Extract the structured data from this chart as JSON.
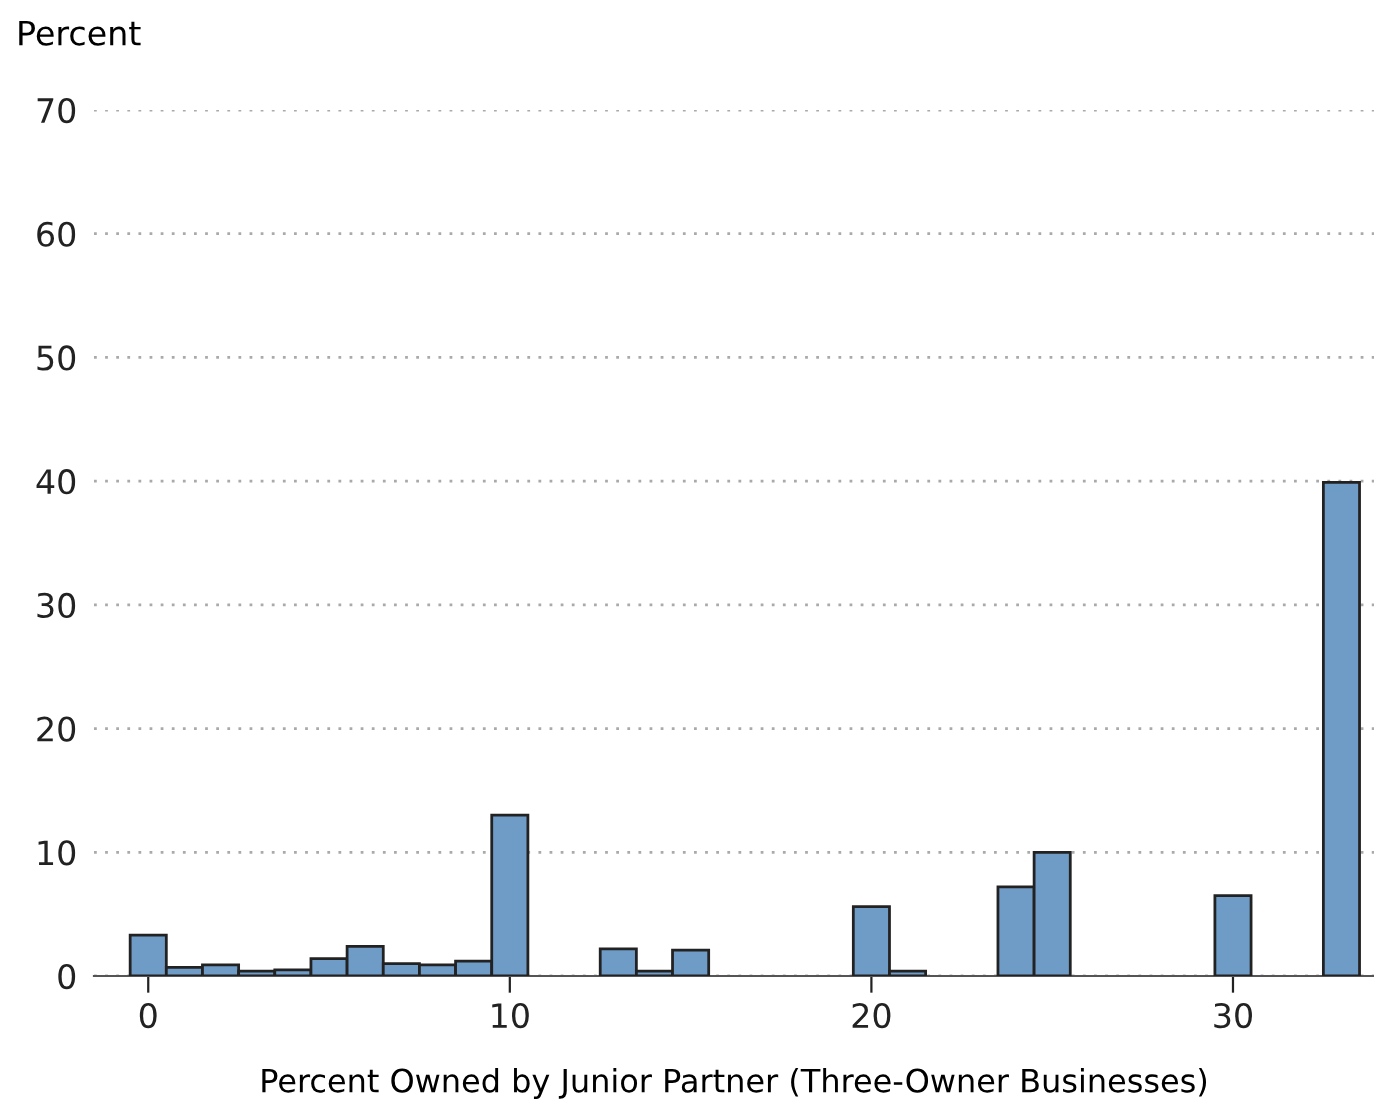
{
  "chart_data": {
    "type": "histogram",
    "ylabel": "Percent",
    "xlabel": "Percent Owned by Junior Partner (Three-Owner Businesses)",
    "bins": [
      -0.5,
      0.5,
      1.5,
      2.5,
      3.5,
      4.5,
      5.5,
      6.5,
      7.5,
      8.5,
      9.5,
      10.5,
      11.5,
      12.5,
      13.5,
      14.5,
      15.5,
      16.5,
      17.5,
      18.5,
      19.5,
      20.5,
      21.5,
      22.5,
      23.5,
      24.5,
      25.5,
      26.5,
      27.5,
      28.5,
      29.5,
      30.5,
      31.5,
      32.5,
      33.5
    ],
    "values": [
      3.3,
      0.7,
      0.9,
      0.4,
      0.5,
      1.4,
      2.4,
      1.0,
      0.9,
      1.2,
      13.0,
      0,
      0,
      2.2,
      0.4,
      2.1,
      0,
      0,
      0,
      0,
      5.6,
      0.4,
      0,
      0,
      7.2,
      10.0,
      0,
      0,
      0,
      0,
      6.5,
      0,
      0,
      39.9
    ],
    "color": "#6f9bc7",
    "xlim": [
      -1.5,
      33.9
    ],
    "ylim": [
      0,
      70
    ],
    "xticks": [
      0,
      10,
      20,
      30
    ],
    "yticks": [
      0,
      10,
      20,
      30,
      40,
      50,
      60,
      70
    ],
    "grid": "y"
  }
}
